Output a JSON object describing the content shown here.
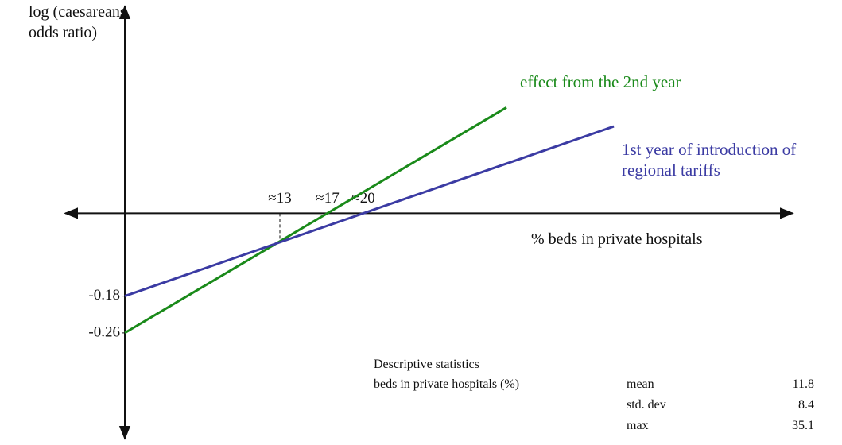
{
  "chart_data": {
    "type": "line",
    "y_label": "log (caesareans odds ratio)",
    "x_label": "% beds in private hospitals",
    "xlim": [
      -5,
      56
    ],
    "ylim": [
      -0.49,
      0.45
    ],
    "xticks": [
      {
        "value": 13,
        "label": "≈13"
      },
      {
        "value": 17,
        "label": "≈17"
      },
      {
        "value": 20,
        "label": "≈20"
      }
    ],
    "yticks": [
      -0.18,
      -0.26
    ],
    "series": [
      {
        "name": "effect from the 2nd year",
        "color": "#1a8a1a",
        "x": [
          0,
          32
        ],
        "values": [
          -0.26,
          0.23
        ]
      },
      {
        "name": "1st year of introduction of regional tariffs",
        "color": "#3b3ba3",
        "x": [
          0,
          41
        ],
        "values": [
          -0.18,
          0.189
        ]
      }
    ],
    "stats": {
      "title": "Descriptive statistics",
      "subtitle": "beds in private hospitals (%)",
      "rows": [
        [
          "mean",
          11.8
        ],
        [
          "std. dev",
          8.4
        ],
        [
          "max",
          35.1
        ]
      ]
    }
  }
}
